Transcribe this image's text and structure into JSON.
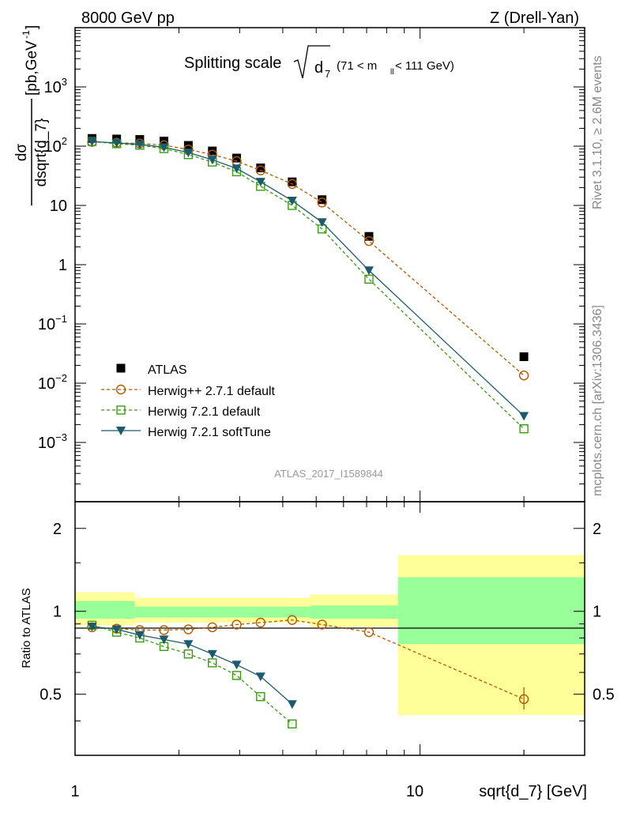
{
  "header": {
    "left": "8000 GeV pp",
    "right": "Z (Drell-Yan)"
  },
  "plot_title": {
    "main": "Splitting scale",
    "symbol": "d",
    "sub": "7",
    "cut": "(71 < m",
    "cut_sub": "ll",
    "cut_end": " < 111 GeV)"
  },
  "side_labels": {
    "rivet": "Rivet 3.1.10, ≥ 2.6M events",
    "mcplots": "mcplots.cern.ch [arXiv:1306.3436]"
  },
  "watermark": "ATLAS_2017_I1589844",
  "y_label_top": {
    "num": "dσ",
    "den": "dsqrt{d_7}",
    "unit": "[pb,GeV",
    "unit_sup": "-1",
    "unit_end": "]"
  },
  "y_label_bottom": "Ratio to ATLAS",
  "x_label": "sqrt{d_7} [GeV]",
  "x_ticks": [
    "1",
    "10"
  ],
  "y_ticks_top": [
    {
      "base": "10",
      "exp": "3"
    },
    {
      "base": "10",
      "exp": "2"
    },
    {
      "base": "10",
      "exp": ""
    },
    {
      "base": "1",
      "exp": ""
    },
    {
      "base": "10",
      "exp": "−1"
    },
    {
      "base": "10",
      "exp": "−2"
    },
    {
      "base": "10",
      "exp": "−3"
    }
  ],
  "y_ticks_bottom": [
    "2",
    "1",
    "0.5"
  ],
  "legend": [
    {
      "label": "ATLAS",
      "color": "#000000",
      "marker": "square-filled"
    },
    {
      "label": "Herwig++ 2.7.1 default",
      "color": "#b35900",
      "marker": "circle-open"
    },
    {
      "label": "Herwig 7.2.1 default",
      "color": "#3a9a12",
      "marker": "square-open"
    },
    {
      "label": "Herwig 7.2.1 softTune",
      "color": "#1c5a6e",
      "marker": "triangle-down"
    }
  ],
  "chart_data": {
    "type": "line",
    "x_scale": "log",
    "y_scale": "log",
    "xlim": [
      1,
      30
    ],
    "ylim_top": [
      0.0001,
      10000
    ],
    "ylim_ratio": [
      0.3,
      2.5
    ],
    "ratio_scale": "log",
    "x": [
      1.12,
      1.32,
      1.54,
      1.81,
      2.13,
      2.5,
      2.94,
      3.45,
      4.26,
      5.2,
      7.11,
      20.0
    ],
    "series": [
      {
        "name": "ATLAS",
        "values": [
          135,
          132,
          130,
          122,
          103,
          83,
          63,
          43,
          25,
          12.5,
          3.0,
          0.028
        ]
      },
      {
        "name": "Herwig++ 2.7.1 default",
        "values": [
          118,
          114,
          111,
          104,
          88,
          72,
          56,
          39,
          23,
          11.2,
          2.5,
          0.0135
        ]
      },
      {
        "name": "Herwig 7.2.1 default",
        "values": [
          120,
          110,
          104,
          91,
          72,
          54,
          37,
          21,
          10,
          4.0,
          0.57,
          0.0017
        ]
      },
      {
        "name": "Herwig 7.2.1 softTune",
        "values": [
          120,
          113,
          107,
          96,
          78,
          59,
          42,
          25,
          12,
          5.2,
          0.8,
          0.0028
        ]
      }
    ],
    "ratio": {
      "reference": "ATLAS",
      "series": [
        {
          "name": "Herwig++ 2.7.1 default",
          "values": [
            0.875,
            0.865,
            0.855,
            0.855,
            0.86,
            0.875,
            0.895,
            0.91,
            0.93,
            0.895,
            0.84,
            0.48
          ]
        },
        {
          "name": "Herwig 7.2.1 default",
          "values": [
            0.89,
            0.84,
            0.8,
            0.745,
            0.7,
            0.65,
            0.585,
            0.49,
            0.39
          ]
        },
        {
          "name": "Herwig 7.2.1 softTune",
          "values": [
            0.88,
            0.86,
            0.82,
            0.79,
            0.76,
            0.7,
            0.64,
            0.58,
            0.46
          ]
        }
      ],
      "bands": [
        {
          "x_range": [
            1.0,
            1.49
          ],
          "stat_sys": [
            0.89,
            1.17
          ],
          "stat": [
            0.94,
            1.09
          ]
        },
        {
          "x_range": [
            1.49,
            4.8
          ],
          "stat_sys": [
            0.91,
            1.12
          ],
          "stat": [
            0.95,
            1.04
          ]
        },
        {
          "x_range": [
            4.8,
            8.63
          ],
          "stat_sys": [
            0.88,
            1.15
          ],
          "stat": [
            0.94,
            1.05
          ]
        },
        {
          "x_range": [
            8.63,
            30
          ],
          "stat_sys": [
            0.42,
            1.6
          ],
          "stat": [
            0.76,
            1.33
          ]
        }
      ]
    }
  }
}
